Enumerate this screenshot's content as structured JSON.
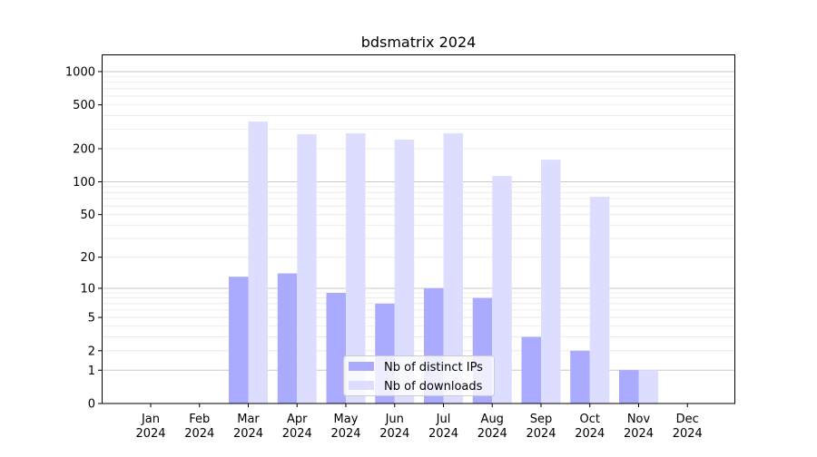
{
  "chart_data": {
    "type": "bar",
    "title": "bdsmatrix 2024",
    "xlabel": "",
    "ylabel": "",
    "y_scale": "symlog (log10(1+y))",
    "ylim": [
      0,
      1300
    ],
    "y_ticks": [
      0,
      1,
      2,
      5,
      10,
      20,
      50,
      100,
      200,
      500,
      1000
    ],
    "grid": true,
    "legend_position": "lower center",
    "categories": [
      "Jan\n2024",
      "Feb\n2024",
      "Mar\n2024",
      "Apr\n2024",
      "May\n2024",
      "Jun\n2024",
      "Jul\n2024",
      "Aug\n2024",
      "Sep\n2024",
      "Oct\n2024",
      "Nov\n2024",
      "Dec\n2024"
    ],
    "category_months": [
      "Jan",
      "Feb",
      "Mar",
      "Apr",
      "May",
      "Jun",
      "Jul",
      "Aug",
      "Sep",
      "Oct",
      "Nov",
      "Dec"
    ],
    "category_year": "2024",
    "series": [
      {
        "name": "Nb of distinct IPs",
        "color": "#aaaaff",
        "values": [
          0,
          0,
          13,
          14,
          9,
          7,
          10,
          8,
          3,
          2,
          1,
          0
        ]
      },
      {
        "name": "Nb of downloads",
        "color": "#ddddff",
        "values": [
          0,
          0,
          353,
          271,
          276,
          242,
          276,
          113,
          159,
          73,
          1,
          0
        ]
      }
    ]
  }
}
